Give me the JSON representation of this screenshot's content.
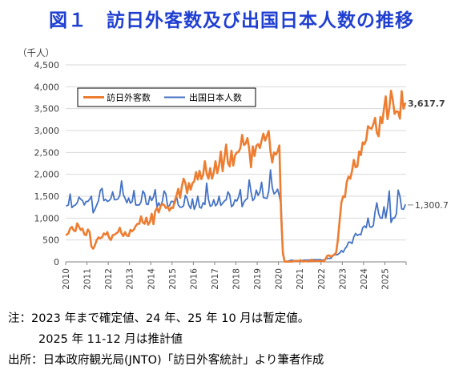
{
  "title": "図１　訪日外客数及び出国日本人数の推移",
  "notes": [
    "注：2023 年まで確定値、24 年、25 年 10 月は暫定値。",
    "2025 年 11-12 月は推計値",
    "出所：日本政府観光局(JNTO)「訪日外客統計」より筆者作成"
  ],
  "colors": {
    "title": "#1f3fd1",
    "inbound": "#ed7d31",
    "outbound": "#4472c4",
    "grid": "#d9d9d9"
  },
  "chart_data": {
    "type": "line",
    "unit_label": "（千人）",
    "ylim": [
      0,
      4500
    ],
    "yticks": [
      0,
      500,
      1000,
      1500,
      2000,
      2500,
      3000,
      3500,
      4000,
      4500
    ],
    "ytick_labels": [
      "0",
      "500",
      "1,000",
      "1,500",
      "2,000",
      "2,500",
      "3,000",
      "3,500",
      "4,000",
      "4,500"
    ],
    "xlim": [
      "2010-01",
      "2025-12"
    ],
    "xtick_labels": [
      "2010",
      "2011",
      "2012",
      "2013",
      "2014",
      "2015",
      "2016",
      "2017",
      "2018",
      "2019",
      "2020",
      "2021",
      "2022",
      "2023",
      "2024",
      "2025"
    ],
    "grid": true,
    "legend_position": "top-left",
    "series": [
      {
        "name": "訪日外客数",
        "color": "#ed7d31",
        "end_label": "3,617.7",
        "values": [
          620,
          650,
          760,
          800,
          720,
          700,
          880,
          800,
          730,
          760,
          630,
          610,
          740,
          680,
          350,
          300,
          380,
          500,
          560,
          540,
          560,
          650,
          620,
          680,
          550,
          500,
          610,
          620,
          650,
          680,
          780,
          650,
          590,
          680,
          600,
          590,
          730,
          700,
          740,
          820,
          870,
          870,
          1040,
          900,
          870,
          1010,
          850,
          910,
          1100,
          860,
          1160,
          1230,
          1130,
          1270,
          1320,
          1300,
          1230,
          1260,
          1170,
          1240,
          1230,
          1390,
          1520,
          1670,
          1460,
          1720,
          1900,
          1800,
          1570,
          1800,
          1650,
          1800,
          1840,
          2050,
          1880,
          2080,
          1890,
          1990,
          2300,
          2020,
          1900,
          2140,
          1900,
          2040,
          2300,
          2030,
          2200,
          2520,
          2070,
          2380,
          2680,
          2260,
          2180,
          2540,
          2200,
          2430,
          2500,
          2510,
          2600,
          2900,
          2670,
          2700,
          2830,
          2580,
          2160,
          2640,
          2420,
          2650,
          2690,
          2600,
          2770,
          2930,
          2770,
          2880,
          2990,
          2520,
          2270,
          2500,
          2450,
          2520,
          2660,
          1080,
          190,
          5,
          5,
          5,
          5,
          10,
          10,
          20,
          20,
          20,
          40,
          10,
          10,
          20,
          10,
          10,
          50,
          20,
          20,
          20,
          20,
          20,
          20,
          10,
          60,
          140,
          150,
          120,
          140,
          160,
          210,
          500,
          940,
          1360,
          1500,
          1480,
          1820,
          1950,
          1900,
          2080,
          2330,
          2160,
          2180,
          2520,
          2440,
          2730,
          2690,
          2790,
          3100,
          3060,
          3040,
          3140,
          3290,
          2950,
          2870,
          3310,
          3170,
          3490,
          3780,
          3260,
          3500,
          3910,
          3690,
          3380,
          3440,
          3430,
          3270,
          3900,
          3500,
          3618
        ]
      },
      {
        "name": "出国日本人数",
        "color": "#4472c4",
        "end_label": "1,300.7",
        "values": [
          1280,
          1300,
          1550,
          1240,
          1280,
          1300,
          1350,
          1480,
          1430,
          1400,
          1300,
          1380,
          1380,
          1430,
          1500,
          1120,
          1200,
          1300,
          1400,
          1630,
          1680,
          1400,
          1430,
          1380,
          1400,
          1450,
          1600,
          1420,
          1420,
          1440,
          1520,
          1850,
          1540,
          1450,
          1350,
          1460,
          1340,
          1380,
          1630,
          1300,
          1300,
          1300,
          1370,
          1620,
          1560,
          1320,
          1310,
          1500,
          1400,
          1480,
          1650,
          1250,
          1350,
          1260,
          1380,
          1620,
          1550,
          1270,
          1280,
          1380,
          1380,
          1330,
          1500,
          1300,
          1250,
          1250,
          1280,
          1520,
          1450,
          1290,
          1220,
          1440,
          1200,
          1300,
          1500,
          1250,
          1230,
          1350,
          1310,
          1800,
          1430,
          1270,
          1290,
          1420,
          1280,
          1330,
          1500,
          1290,
          1340,
          1390,
          1420,
          1600,
          1530,
          1260,
          1300,
          1420,
          1390,
          1480,
          1650,
          1260,
          1360,
          1420,
          1450,
          1870,
          1610,
          1400,
          1450,
          1640,
          1520,
          1590,
          1820,
          1470,
          1460,
          1450,
          1610,
          2100,
          1700,
          1550,
          1590,
          1660,
          1510,
          1300,
          250,
          5,
          10,
          20,
          30,
          40,
          30,
          30,
          30,
          30,
          30,
          30,
          40,
          40,
          40,
          40,
          50,
          50,
          50,
          50,
          50,
          50,
          40,
          40,
          60,
          80,
          80,
          80,
          130,
          180,
          160,
          170,
          200,
          260,
          220,
          300,
          350,
          450,
          450,
          420,
          570,
          650,
          600,
          630,
          620,
          780,
          820,
          780,
          1000,
          800,
          790,
          830,
          1150,
          1350,
          1100,
          1000,
          1000,
          1260,
          1000,
          1250,
          1620,
          900,
          1000,
          1000,
          1100,
          1640,
          1500,
          1210,
          1200,
          1301
        ]
      }
    ]
  }
}
